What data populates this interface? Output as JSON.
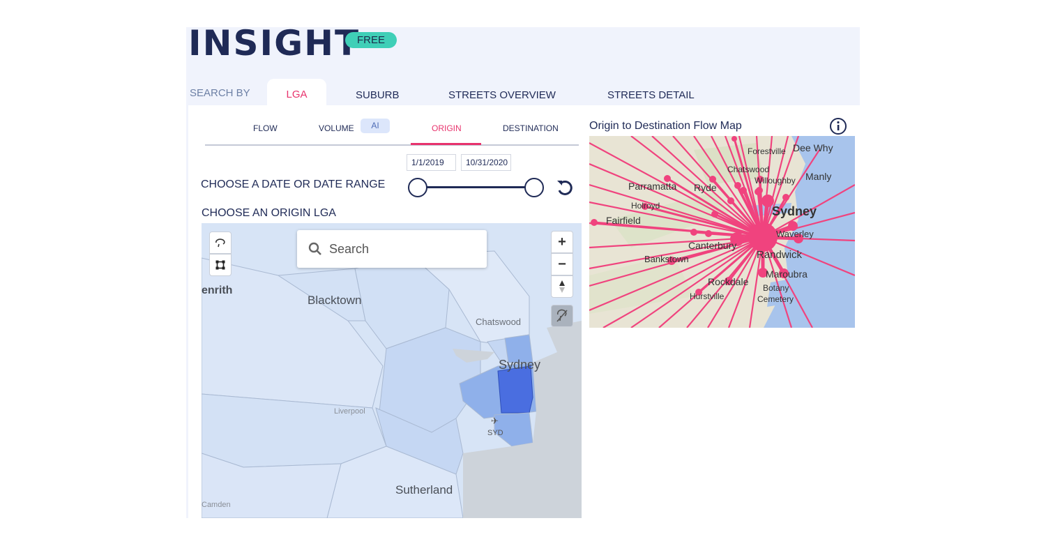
{
  "brand": {
    "title": "INSIGHT",
    "badge": "FREE"
  },
  "search_by": {
    "label": "SEARCH BY",
    "tabs": [
      {
        "label": "LGA",
        "active": true
      },
      {
        "label": "SUBURB",
        "active": false
      },
      {
        "label": "STREETS OVERVIEW",
        "active": false
      },
      {
        "label": "STREETS DETAIL",
        "active": false
      }
    ]
  },
  "sub_tabs": {
    "items": [
      {
        "label": "FLOW",
        "active": false
      },
      {
        "label": "VOLUME",
        "active": false
      },
      {
        "label": "ORIGIN",
        "active": true
      },
      {
        "label": "DESTINATION",
        "active": false
      }
    ],
    "ai_chip": "AI"
  },
  "date_range": {
    "label": "CHOOSE A DATE OR DATE RANGE",
    "start": "1/1/2019",
    "end": "10/31/2020",
    "slider_start_fraction": 0,
    "slider_end_fraction": 1
  },
  "origin_map": {
    "label": "CHOOSE AN ORIGIN LGA",
    "search_placeholder": "Search",
    "place_labels": {
      "penrith": "enrith",
      "blacktown": "Blacktown",
      "chatswood": "Chatswood",
      "sydney": "Sydney",
      "liverpool": "Liverpool",
      "syd": "SYD",
      "sutherland": "Sutherland",
      "camden": "Camden"
    },
    "colors": {
      "selected": "#4a6ee0",
      "neighbour": "#8fb0ea",
      "light": "#c5d7f3",
      "base": "#d7e4f6",
      "water": "#cdd3da"
    }
  },
  "flow_map": {
    "title": "Origin to Destination Flow Map",
    "info_icon": "info-icon",
    "line_color": "#f0437e",
    "place_labels": {
      "forestville": "Forestville",
      "dee_why": "Dee Why",
      "chatswood": "Chatswood",
      "willoughby": "Willoughby",
      "manly": "Manly",
      "parramatta": "Parramatta",
      "ryde": "Ryde",
      "sydney": "Sydney",
      "fairfield": "Fairfield",
      "canterbury": "Canterbury",
      "waverley": "Waverley",
      "bankstown": "Bankstown",
      "randwick": "Randwick",
      "maroubra": "Maroubra",
      "rockdale": "Rockdale",
      "botany": "Botany",
      "cemetery": "Cemetery",
      "hurstville": "Hurstville",
      "holroyd": "Holroyd"
    }
  },
  "icons": {
    "reset": "reset-icon",
    "search": "search-icon",
    "zoom_in": "plus-icon",
    "zoom_out": "minus-icon",
    "compass": "compass-icon",
    "draw": "lasso-icon",
    "select": "box-select-icon",
    "clear": "clear-selection-icon"
  }
}
